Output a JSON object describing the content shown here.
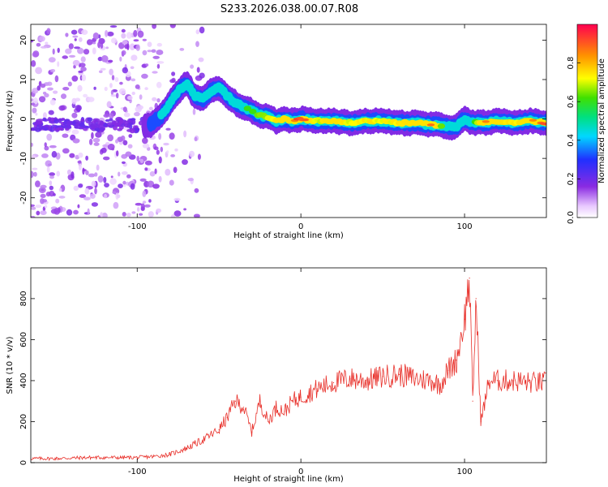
{
  "title": "S233.2026.038.00.07.R08",
  "chart_data": [
    {
      "type": "heatmap",
      "xlabel": "Height of straight line (km)",
      "ylabel": "Frequency (Hz)",
      "xlim": [
        -165,
        150
      ],
      "ylim": [
        -25,
        24
      ],
      "xticks": [
        -100,
        0,
        100
      ],
      "yticks": [
        -20,
        -10,
        0,
        10,
        20
      ],
      "colorbar": {
        "label": "Normalized spectral amplitude",
        "range": [
          0,
          1
        ],
        "ticks": [
          "0.0",
          "0.2",
          "0.4",
          "0.6",
          "0.8"
        ]
      },
      "ridge": {
        "x": [
          -95,
          -90,
          -85,
          -80,
          -75,
          -70,
          -65,
          -60,
          -55,
          -50,
          -45,
          -40,
          -35,
          -30,
          -25,
          -20,
          -15,
          -10,
          -5,
          0,
          10,
          20,
          30,
          40,
          50,
          60,
          70,
          80,
          85,
          90,
          95,
          100,
          105,
          110,
          120,
          130,
          140,
          150
        ],
        "freq": [
          -2,
          -1,
          1,
          4,
          7,
          9,
          6,
          5,
          7,
          8,
          6,
          4,
          3,
          2,
          1,
          0.5,
          -0.5,
          0,
          -0.5,
          0,
          -0.5,
          -0.5,
          -1,
          -0.5,
          -0.5,
          -1,
          -1,
          -1.5,
          -1.5,
          -2,
          -2,
          0,
          -1,
          -1,
          -0.5,
          -1,
          -0.5,
          -1
        ],
        "amp": [
          0.3,
          0.35,
          0.4,
          0.5,
          0.5,
          0.45,
          0.5,
          0.55,
          0.5,
          0.45,
          0.5,
          0.5,
          0.55,
          0.6,
          0.65,
          0.7,
          0.75,
          0.8,
          0.85,
          0.95,
          0.7,
          0.8,
          0.7,
          0.75,
          0.7,
          0.75,
          0.8,
          0.85,
          0.7,
          0.5,
          0.45,
          0.4,
          0.5,
          0.85,
          0.8,
          0.75,
          0.8,
          0.9
        ]
      }
    },
    {
      "type": "line",
      "xlabel": "Height of straight line (km)",
      "ylabel": "SNR (10 * v/v)",
      "xlim": [
        -165,
        150
      ],
      "ylim": [
        0,
        950
      ],
      "xticks": [
        -100,
        0,
        100
      ],
      "yticks": [
        0,
        200,
        400,
        600,
        800
      ],
      "series": [
        {
          "name": "SNR",
          "color": "#e8302a",
          "x": [
            -165,
            -150,
            -130,
            -110,
            -100,
            -90,
            -80,
            -70,
            -60,
            -50,
            -45,
            -40,
            -35,
            -30,
            -25,
            -20,
            -15,
            -10,
            -5,
            0,
            10,
            20,
            30,
            40,
            50,
            60,
            70,
            80,
            85,
            90,
            95,
            100,
            103,
            105,
            107,
            110,
            115,
            120,
            130,
            140,
            150
          ],
          "y": [
            20,
            20,
            25,
            25,
            25,
            30,
            40,
            70,
            110,
            160,
            220,
            300,
            270,
            150,
            300,
            200,
            270,
            250,
            300,
            320,
            360,
            390,
            410,
            400,
            420,
            430,
            410,
            400,
            380,
            450,
            500,
            700,
            900,
            300,
            800,
            200,
            400,
            400,
            400,
            390,
            390
          ]
        }
      ]
    }
  ]
}
